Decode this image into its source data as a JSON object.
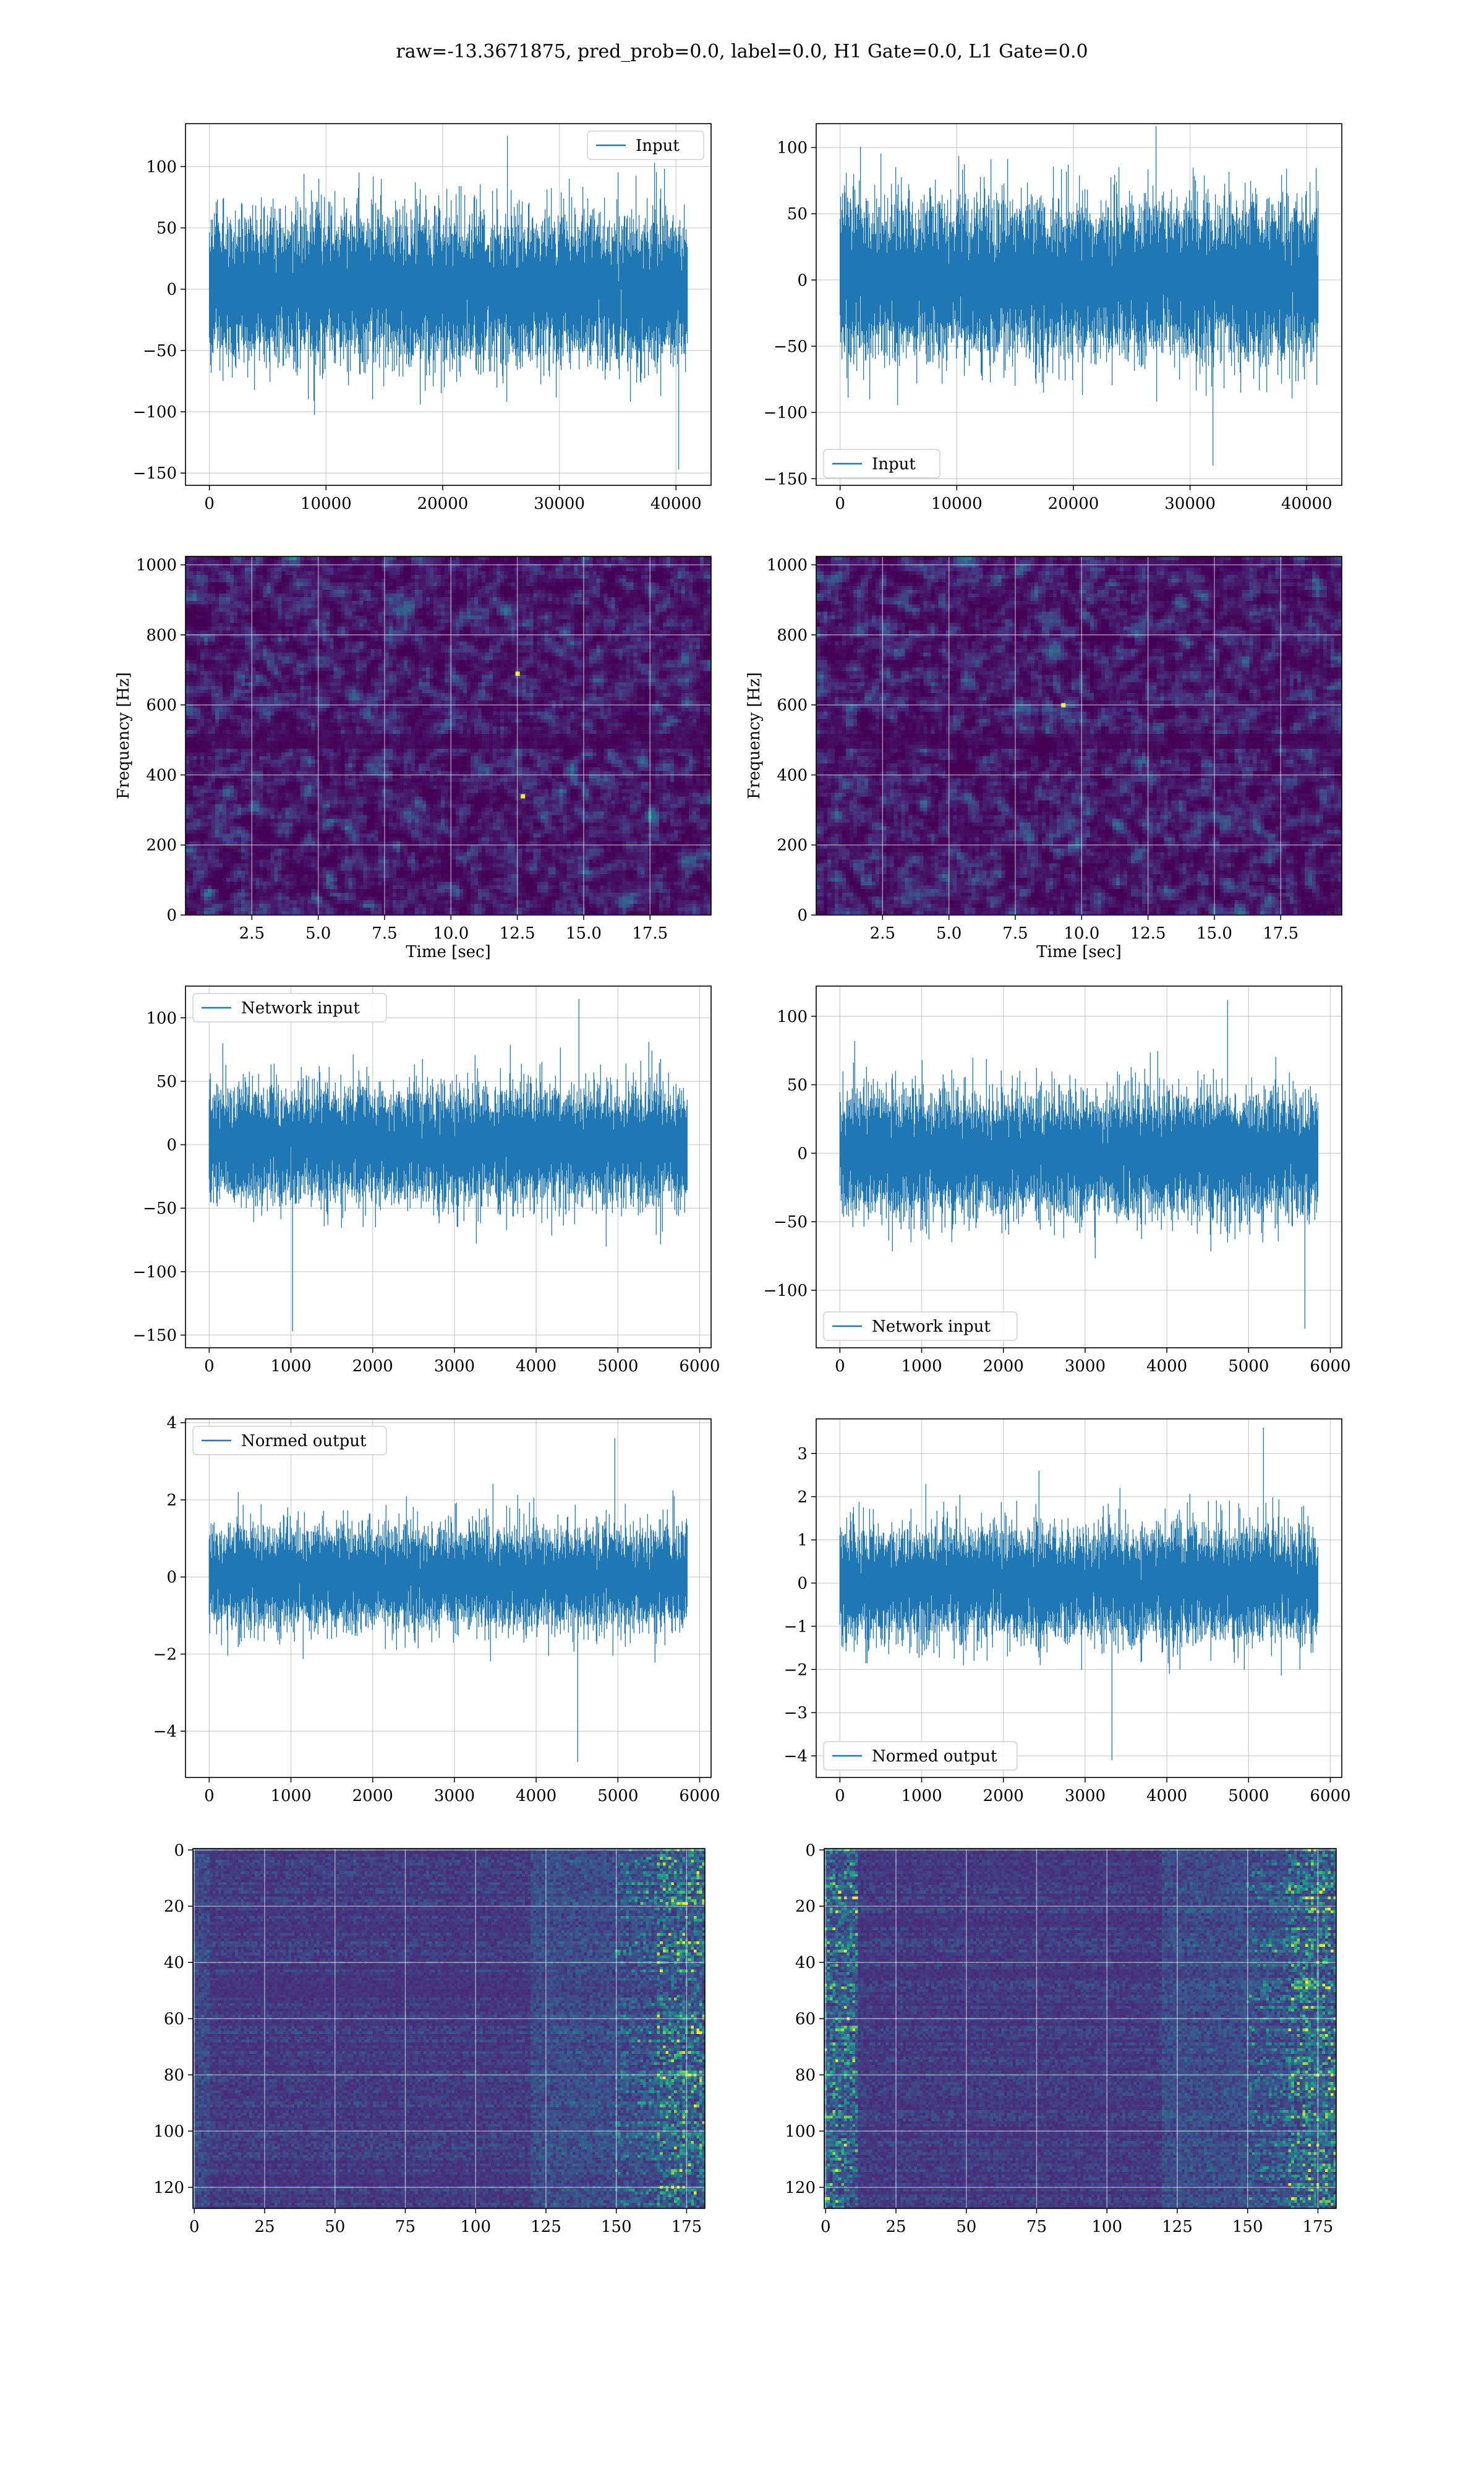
{
  "figure": {
    "suptitle": "raw=-13.3671875, pred_prob=0.0, label=0.0, H1 Gate=0.0, L1 Gate=0.0",
    "colors": {
      "line": "#1f77b4",
      "grid": "#b0b0b0",
      "cmap_low": "#440154",
      "cmap_high": "#fde725"
    }
  },
  "chart_data": [
    {
      "id": "h1-input",
      "type": "line",
      "series": [
        {
          "name": "Input",
          "n_samples": 40960,
          "center": 0,
          "typical_amplitude": 60,
          "max": 125,
          "min": -147
        }
      ],
      "legend": "top-right",
      "xlim": [
        -2048,
        43008
      ],
      "ylim": [
        -160,
        135
      ],
      "xticks": [
        0,
        10000,
        20000,
        30000,
        40000
      ],
      "yticks": [
        -150,
        -100,
        -50,
        0,
        50,
        100
      ],
      "xlabel": "",
      "ylabel": "",
      "grid": true
    },
    {
      "id": "l1-input",
      "type": "line",
      "series": [
        {
          "name": "Input",
          "n_samples": 40960,
          "center": 0,
          "typical_amplitude": 60,
          "max": 116,
          "min": -140
        }
      ],
      "legend": "lower-left",
      "xlim": [
        -2048,
        43008
      ],
      "ylim": [
        -155,
        118
      ],
      "xticks": [
        0,
        10000,
        20000,
        30000,
        40000
      ],
      "yticks": [
        -150,
        -100,
        -50,
        0,
        50,
        100
      ],
      "xlabel": "",
      "ylabel": "",
      "grid": true
    },
    {
      "id": "h1-spectrogram",
      "type": "heatmap",
      "xlim": [
        0,
        19.8
      ],
      "ylim": [
        0,
        1024
      ],
      "xticks": [
        2.5,
        5.0,
        7.5,
        10.0,
        12.5,
        15.0,
        17.5
      ],
      "xtick_labels": [
        "2.5",
        "5.0",
        "7.5",
        "10.0",
        "12.5",
        "15.0",
        "17.5"
      ],
      "yticks": [
        0,
        200,
        400,
        600,
        800,
        1000
      ],
      "xlabel": "Time [sec]",
      "ylabel": "Frequency [Hz]",
      "grid": true,
      "bright_spots": [
        [
          12.7,
          340
        ],
        [
          12.5,
          690
        ]
      ]
    },
    {
      "id": "l1-spectrogram",
      "type": "heatmap",
      "xlim": [
        0,
        19.8
      ],
      "ylim": [
        0,
        1024
      ],
      "xticks": [
        2.5,
        5.0,
        7.5,
        10.0,
        12.5,
        15.0,
        17.5
      ],
      "xtick_labels": [
        "2.5",
        "5.0",
        "7.5",
        "10.0",
        "12.5",
        "15.0",
        "17.5"
      ],
      "yticks": [
        0,
        200,
        400,
        600,
        800,
        1000
      ],
      "xlabel": "Time [sec]",
      "ylabel": "Frequency [Hz]",
      "grid": true,
      "bright_spots": [
        [
          9.3,
          600
        ]
      ]
    },
    {
      "id": "h1-network-input",
      "type": "line",
      "series": [
        {
          "name": "Network input",
          "n_samples": 5850,
          "center": 0,
          "typical_amplitude": 45,
          "max": 115,
          "min": -147
        }
      ],
      "legend": "top-left",
      "xlim": [
        -290,
        6140
      ],
      "ylim": [
        -160,
        125
      ],
      "xticks": [
        0,
        1000,
        2000,
        3000,
        4000,
        5000,
        6000
      ],
      "yticks": [
        -150,
        -100,
        -50,
        0,
        50,
        100
      ],
      "xlabel": "",
      "ylabel": "",
      "grid": true
    },
    {
      "id": "l1-network-input",
      "type": "line",
      "series": [
        {
          "name": "Network input",
          "n_samples": 5850,
          "center": 0,
          "typical_amplitude": 45,
          "max": 112,
          "min": -128
        }
      ],
      "legend": "lower-left",
      "xlim": [
        -290,
        6140
      ],
      "ylim": [
        -142,
        122
      ],
      "xticks": [
        0,
        1000,
        2000,
        3000,
        4000,
        5000,
        6000
      ],
      "yticks": [
        -100,
        -50,
        0,
        50,
        100
      ],
      "xlabel": "",
      "ylabel": "",
      "grid": true
    },
    {
      "id": "h1-normed-output",
      "type": "line",
      "series": [
        {
          "name": "Normed output",
          "n_samples": 5850,
          "center": 0,
          "typical_amplitude": 1.3,
          "max": 3.6,
          "min": -4.8
        }
      ],
      "legend": "top-left",
      "xlim": [
        -290,
        6140
      ],
      "ylim": [
        -5.2,
        4.1
      ],
      "xticks": [
        0,
        1000,
        2000,
        3000,
        4000,
        5000,
        6000
      ],
      "yticks": [
        -4,
        -2,
        0,
        2,
        4
      ],
      "xlabel": "",
      "ylabel": "",
      "grid": true
    },
    {
      "id": "l1-normed-output",
      "type": "line",
      "series": [
        {
          "name": "Normed output",
          "n_samples": 5850,
          "center": 0,
          "typical_amplitude": 1.3,
          "max": 3.6,
          "min": -4.1
        }
      ],
      "legend": "lower-left",
      "xlim": [
        -290,
        6140
      ],
      "ylim": [
        -4.5,
        3.8
      ],
      "xticks": [
        0,
        1000,
        2000,
        3000,
        4000,
        5000,
        6000
      ],
      "yticks": [
        -4,
        -3,
        -2,
        -1,
        0,
        1,
        2,
        3
      ],
      "xlabel": "",
      "ylabel": "",
      "grid": true
    },
    {
      "id": "h1-feature-map",
      "type": "heatmap",
      "rows": 128,
      "cols": 182,
      "xlim": [
        -0.5,
        181.5
      ],
      "ylim": [
        127.5,
        -0.5
      ],
      "xticks": [
        0,
        25,
        50,
        75,
        100,
        125,
        150,
        175
      ],
      "yticks": [
        0,
        20,
        40,
        60,
        80,
        100,
        120
      ],
      "xlabel": "",
      "ylabel": "",
      "grid": true,
      "bright_region": "right edge (cols 165-182)"
    },
    {
      "id": "l1-feature-map",
      "type": "heatmap",
      "rows": 128,
      "cols": 182,
      "xlim": [
        -0.5,
        181.5
      ],
      "ylim": [
        127.5,
        -0.5
      ],
      "xticks": [
        0,
        25,
        50,
        75,
        100,
        125,
        150,
        175
      ],
      "yticks": [
        0,
        20,
        40,
        60,
        80,
        100,
        120
      ],
      "xlabel": "",
      "ylabel": "",
      "grid": true,
      "bright_region": "left edge (cols 0-12) and right edge (cols 150-182)"
    }
  ]
}
